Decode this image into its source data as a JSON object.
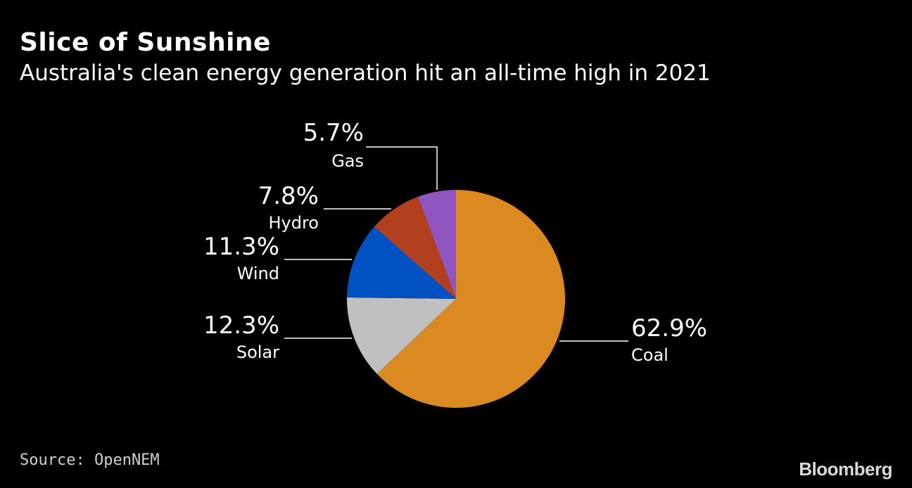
{
  "header": {
    "title": "Slice of Sunshine",
    "subtitle": "Australia's clean energy generation hit an all-time high in 2021"
  },
  "footer": {
    "source": "Source: OpenNEM",
    "brand": "Bloomberg"
  },
  "chart_data": {
    "type": "pie",
    "title": "Slice of Sunshine",
    "subtitle": "Australia's clean energy generation hit an all-time high in 2021",
    "slices": [
      {
        "name": "Coal",
        "value": 62.9,
        "label": "62.9%",
        "color": "#db8a22"
      },
      {
        "name": "Solar",
        "value": 12.3,
        "label": "12.3%",
        "color": "#c0c0c0"
      },
      {
        "name": "Wind",
        "value": 11.3,
        "label": "11.3%",
        "color": "#0052c2"
      },
      {
        "name": "Hydro",
        "value": 7.8,
        "label": "7.8%",
        "color": "#b2401f"
      },
      {
        "name": "Gas",
        "value": 5.7,
        "label": "5.7%",
        "color": "#9055bf"
      }
    ],
    "direction": "clockwise",
    "start": "top"
  }
}
